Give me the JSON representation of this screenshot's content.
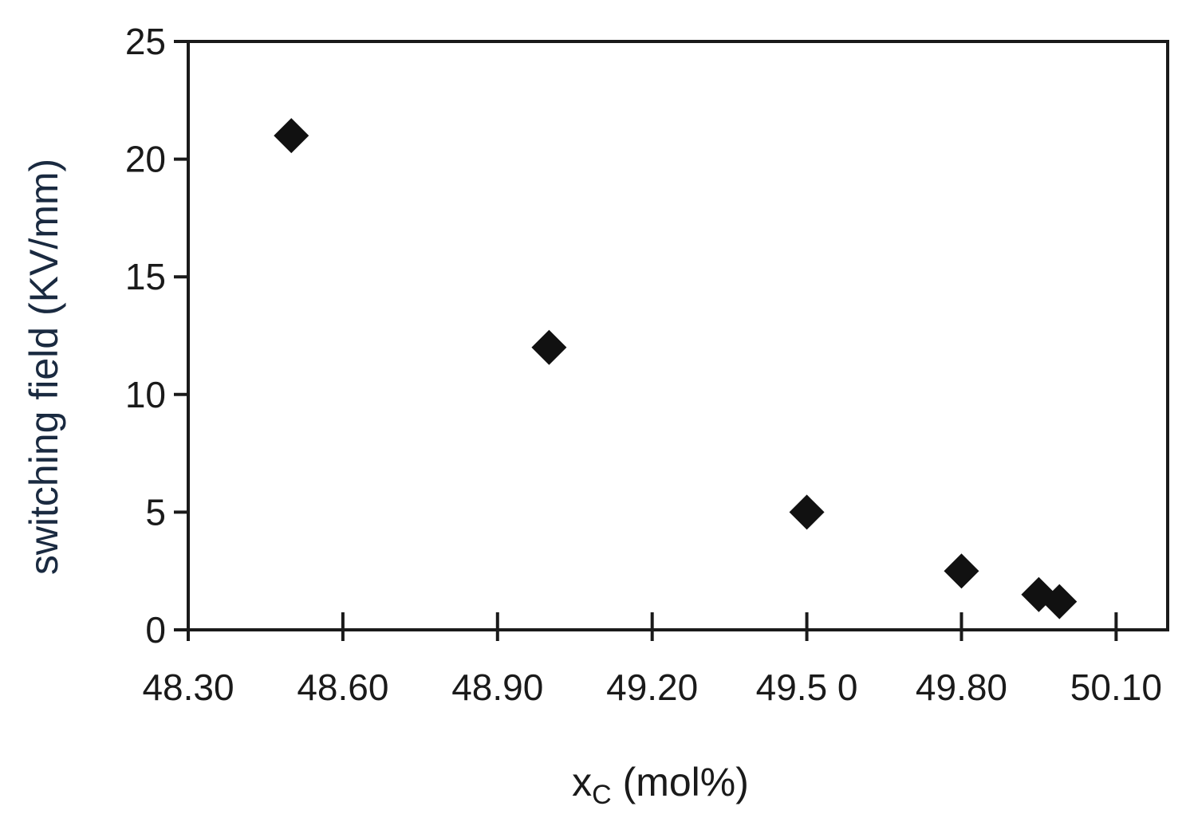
{
  "chart_data": {
    "type": "scatter",
    "title": "",
    "xlabel": "x",
    "xlabel_subscript": "C",
    "xlabel_suffix": " (mol%)",
    "ylabel": "switching field (KV/mm)",
    "xlim": [
      48.3,
      50.2
    ],
    "ylim": [
      0,
      25
    ],
    "xticks": [
      48.3,
      48.6,
      48.9,
      49.2,
      49.5,
      49.8,
      50.1
    ],
    "xtick_labels": [
      "48.30",
      "48.60",
      "48.90",
      "49.20",
      "49.5 0",
      "49.80",
      "50.10"
    ],
    "yticks": [
      0,
      5,
      10,
      15,
      20,
      25
    ],
    "ytick_labels": [
      "0",
      "5",
      "10",
      "15",
      "20",
      "25"
    ],
    "grid": false,
    "marker": "diamond",
    "marker_color": "#111111",
    "series": [
      {
        "points": [
          {
            "x": 48.5,
            "y": 21.0
          },
          {
            "x": 49.0,
            "y": 12.0
          },
          {
            "x": 49.5,
            "y": 5.0
          },
          {
            "x": 49.8,
            "y": 2.5
          },
          {
            "x": 49.95,
            "y": 1.5
          },
          {
            "x": 49.99,
            "y": 1.2
          }
        ]
      }
    ]
  }
}
